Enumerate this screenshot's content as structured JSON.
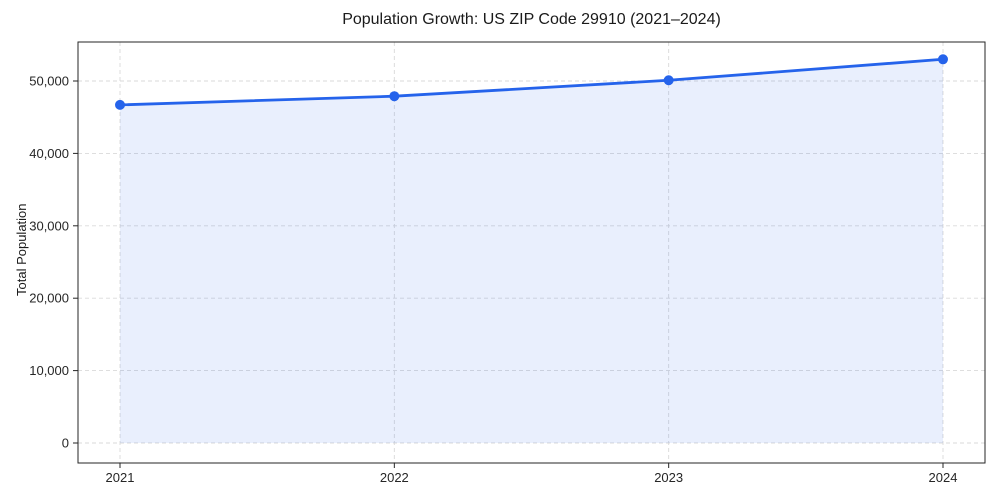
{
  "figure": {
    "background": "#ffffff"
  },
  "chart_data": {
    "type": "line",
    "title": "Population Growth: US ZIP Code 29910 (2021–2024)",
    "xlabel": "",
    "ylabel": "Total Population",
    "categories": [
      "2021",
      "2022",
      "2023",
      "2024"
    ],
    "series": [
      {
        "name": "Total Population",
        "values": [
          46700,
          47900,
          50100,
          53000
        ]
      }
    ],
    "y_ticks": [
      0,
      10000,
      20000,
      30000,
      40000,
      50000
    ],
    "ylim": [
      0,
      50000
    ],
    "grid": true,
    "legend": false,
    "area_fill": true,
    "marker": "circle",
    "colors": {
      "line": "#2563eb",
      "marker": "#2563eb",
      "area": "rgba(37, 99, 235, 0.10)",
      "grid": "#d9d9d9",
      "axis": "#262626",
      "text": "#262626"
    }
  }
}
